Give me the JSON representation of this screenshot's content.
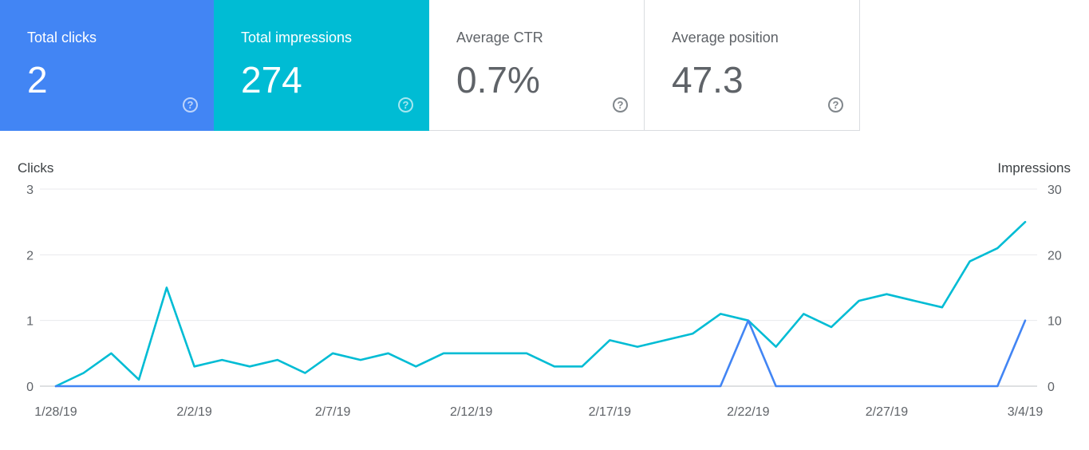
{
  "cards": [
    {
      "label": "Total clicks",
      "value": "2",
      "color": "#4285f4"
    },
    {
      "label": "Total impressions",
      "value": "274",
      "color": "#00bcd4"
    },
    {
      "label": "Average CTR",
      "value": "0.7%"
    },
    {
      "label": "Average position",
      "value": "47.3"
    }
  ],
  "help_glyph": "?",
  "chart_data": {
    "type": "line",
    "x": [
      "1/28/19",
      "1/29/19",
      "1/30/19",
      "1/31/19",
      "2/1/19",
      "2/2/19",
      "2/3/19",
      "2/4/19",
      "2/5/19",
      "2/6/19",
      "2/7/19",
      "2/8/19",
      "2/9/19",
      "2/10/19",
      "2/11/19",
      "2/12/19",
      "2/13/19",
      "2/14/19",
      "2/15/19",
      "2/16/19",
      "2/17/19",
      "2/18/19",
      "2/19/19",
      "2/20/19",
      "2/21/19",
      "2/22/19",
      "2/23/19",
      "2/24/19",
      "2/25/19",
      "2/26/19",
      "2/27/19",
      "2/28/19",
      "3/1/19",
      "3/2/19",
      "3/3/19",
      "3/4/19"
    ],
    "x_ticks": [
      "1/28/19",
      "2/2/19",
      "2/7/19",
      "2/12/19",
      "2/17/19",
      "2/22/19",
      "2/27/19",
      "3/4/19"
    ],
    "series": [
      {
        "name": "Clicks",
        "axis": "left",
        "color": "#4285f4",
        "values": [
          0,
          0,
          0,
          0,
          0,
          0,
          0,
          0,
          0,
          0,
          0,
          0,
          0,
          0,
          0,
          0,
          0,
          0,
          0,
          0,
          0,
          0,
          0,
          0,
          0,
          1,
          0,
          0,
          0,
          0,
          0,
          0,
          0,
          0,
          0,
          1
        ]
      },
      {
        "name": "Impressions",
        "axis": "right",
        "color": "#00bcd4",
        "values": [
          0,
          2,
          5,
          1,
          15,
          3,
          4,
          3,
          4,
          2,
          5,
          4,
          5,
          3,
          5,
          5,
          5,
          5,
          3,
          3,
          7,
          6,
          7,
          8,
          11,
          10,
          6,
          11,
          9,
          13,
          14,
          13,
          12,
          19,
          21,
          25
        ]
      }
    ],
    "ylabel": "Clicks",
    "y2label": "Impressions",
    "ylim": [
      0,
      3
    ],
    "y2lim": [
      0,
      30
    ],
    "yticks": [
      "0",
      "1",
      "2",
      "3"
    ],
    "y2ticks": [
      "0",
      "10",
      "20",
      "30"
    ],
    "grid": true
  }
}
